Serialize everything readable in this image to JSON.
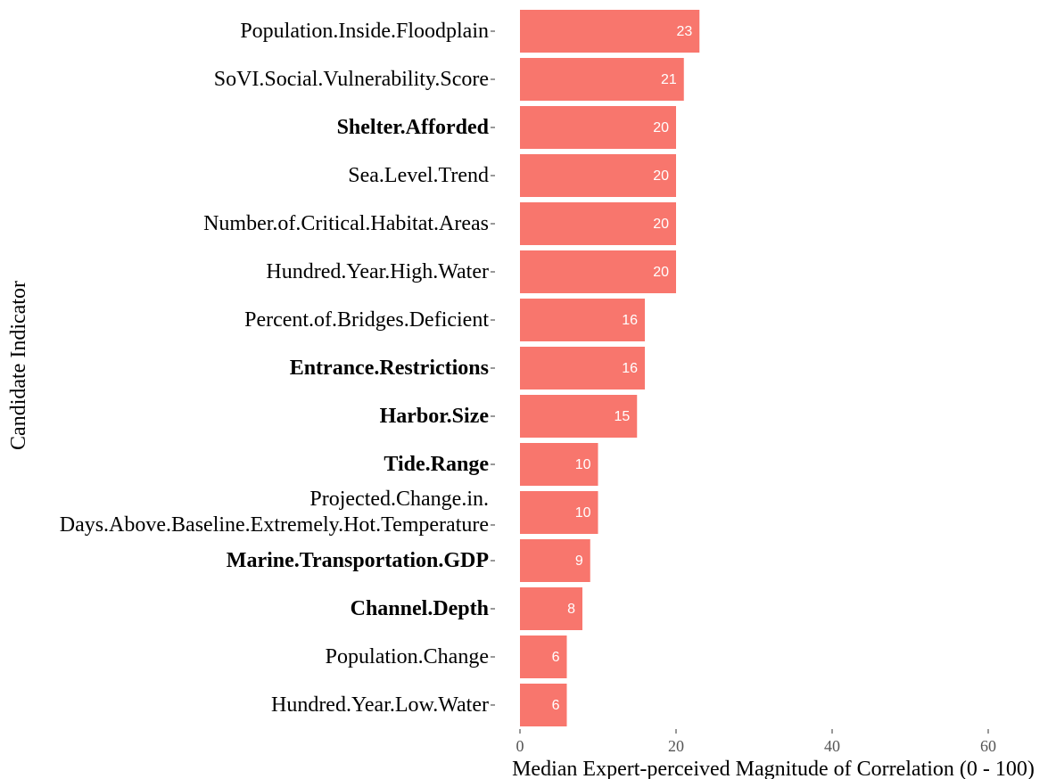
{
  "chart_data": {
    "type": "bar",
    "orientation": "horizontal",
    "x_label": "Median Expert-perceived Magnitude of Correlation (0 - 100)",
    "y_label": "Candidate Indicator",
    "categories": [
      "Population.Inside.Floodplain",
      "SoVI.Social.Vulnerability.Score",
      "Shelter.Afforded",
      "Sea.Level.Trend",
      "Number.of.Critical.Habitat.Areas",
      "Hundred.Year.High.Water",
      "Percent.of.Bridges.Deficient",
      "Entrance.Restrictions",
      "Harbor.Size",
      "Tide.Range",
      "Projected.Change.in.\nDays.Above.Baseline.Extremely.Hot.Temperature",
      "Marine.Transportation.GDP",
      "Channel.Depth",
      "Population.Change",
      "Hundred.Year.Low.Water"
    ],
    "category_bold": [
      false,
      false,
      true,
      false,
      false,
      false,
      false,
      true,
      true,
      true,
      false,
      true,
      true,
      false,
      false
    ],
    "values": [
      23,
      21,
      20,
      20,
      20,
      20,
      16,
      16,
      15,
      10,
      10,
      9,
      8,
      6,
      6
    ],
    "color": "#f8766d",
    "xlim": [
      0,
      60
    ],
    "xticks": [
      0,
      20,
      40,
      60
    ],
    "grid": false
  }
}
